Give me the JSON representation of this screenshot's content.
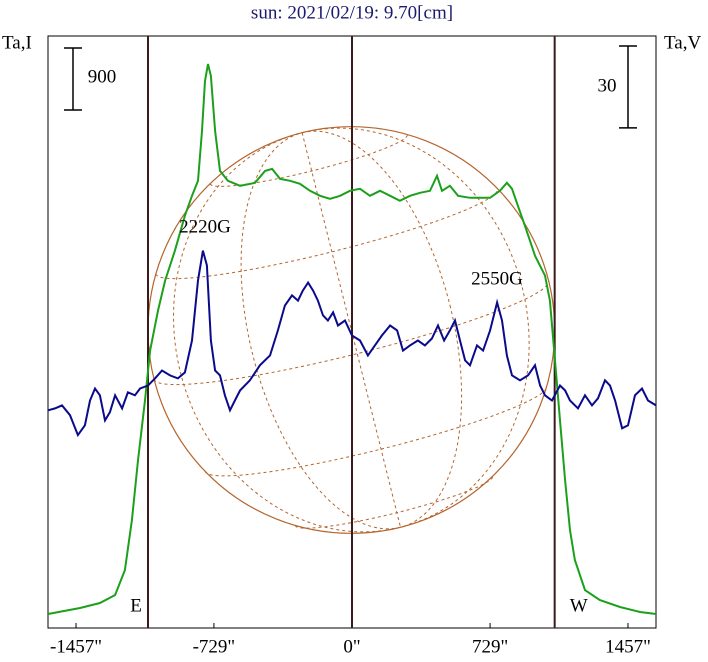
{
  "chart_data": {
    "type": "line",
    "title": "sun: 2021/02/19: 9.70[cm]",
    "ylabel": "Ta,I",
    "y2label": "Ta,V",
    "xlim": [
      -1605,
      1605
    ],
    "xticks": [
      {
        "value": -1457,
        "label": "-1457\""
      },
      {
        "value": -729,
        "label": "-729\""
      },
      {
        "value": 0,
        "label": "0\""
      },
      {
        "value": 729,
        "label": "729\""
      },
      {
        "value": 1457,
        "label": "1457\""
      }
    ],
    "ylim": [
      0,
      8600
    ],
    "y2lim": [
      0,
      217
    ],
    "y_scale": 900,
    "y2_scale": 30,
    "limbs": [
      -1077,
      1070
    ],
    "limb_labels": [
      "E",
      "W"
    ],
    "annotations": [
      "2220G",
      "2550G"
    ],
    "series": [
      {
        "name": "Ta,I",
        "color": "#1ca01c",
        "x": [
          -1605,
          -1436,
          -1331,
          -1251,
          -1199,
          -1162,
          -1130,
          -1093,
          -1066,
          -1024,
          -987,
          -935,
          -882,
          -845,
          -813,
          -792,
          -776,
          -760,
          -745,
          -723,
          -697,
          -655,
          -591,
          -512,
          -459,
          -422,
          -380,
          -327,
          -275,
          -222,
          -169,
          -116,
          -63,
          -11,
          42,
          95,
          148,
          201,
          253,
          306,
          359,
          412,
          449,
          475,
          517,
          560,
          623,
          729,
          781,
          818,
          845,
          876,
          913,
          966,
          1019,
          1045,
          1072,
          1098,
          1125,
          1151,
          1177,
          1230,
          1309,
          1415,
          1521,
          1605
        ],
        "values": [
          203,
          290,
          363,
          479,
          841,
          1566,
          2436,
          3306,
          4031,
          4611,
          5046,
          5481,
          5989,
          6279,
          6496,
          7221,
          7946,
          8193,
          8019,
          7221,
          6641,
          6496,
          6424,
          6467,
          6641,
          6670,
          6525,
          6496,
          6453,
          6351,
          6279,
          6235,
          6279,
          6351,
          6380,
          6279,
          6351,
          6279,
          6206,
          6279,
          6322,
          6351,
          6569,
          6351,
          6424,
          6279,
          6250,
          6250,
          6351,
          6467,
          6380,
          6134,
          5844,
          5409,
          5119,
          4756,
          3886,
          3016,
          2146,
          1421,
          986,
          551,
          406,
          305,
          232,
          203
        ]
      },
      {
        "name": "Ta,V",
        "color": "#0a0a8c",
        "axis": "y2",
        "x": [
          -1605,
          -1568,
          -1531,
          -1489,
          -1447,
          -1410,
          -1383,
          -1357,
          -1331,
          -1304,
          -1278,
          -1251,
          -1214,
          -1183,
          -1146,
          -1119,
          -1077,
          -1040,
          -1003,
          -961,
          -919,
          -882,
          -845,
          -813,
          -787,
          -766,
          -745,
          -723,
          -697,
          -671,
          -644,
          -618,
          -591,
          -539,
          -486,
          -433,
          -391,
          -354,
          -317,
          -285,
          -259,
          -232,
          -206,
          -180,
          -153,
          -127,
          -100,
          -74,
          -37,
          0,
          42,
          84,
          121,
          158,
          201,
          238,
          269,
          306,
          348,
          385,
          422,
          454,
          486,
          517,
          544,
          570,
          597,
          623,
          660,
          692,
          729,
          766,
          792,
          818,
          845,
          887,
          929,
          966,
          993,
          1019,
          1056,
          1098,
          1125,
          1151,
          1193,
          1230,
          1267,
          1299,
          1336,
          1362,
          1389,
          1426,
          1457,
          1494,
          1531,
          1563,
          1605
        ],
        "values": [
          79.8,
          80.5,
          81.6,
          78.0,
          70.7,
          74.3,
          83.4,
          87.8,
          85.3,
          76.1,
          79.1,
          85.3,
          80.5,
          86.4,
          85.3,
          87.8,
          88.9,
          91.5,
          94.4,
          92.6,
          91.5,
          93.7,
          105.4,
          127.4,
          138.3,
          132.9,
          105.4,
          94.4,
          92.6,
          85.3,
          79.8,
          83.4,
          87.1,
          90.8,
          96.3,
          99.9,
          109.1,
          118.2,
          121.9,
          120.0,
          123.7,
          126.6,
          123.7,
          120.0,
          114.6,
          112.7,
          115.7,
          110.9,
          112.7,
          107.2,
          105.4,
          99.9,
          103.6,
          107.2,
          110.9,
          109.1,
          101.7,
          103.6,
          105.4,
          103.6,
          106.1,
          110.9,
          105.4,
          109.1,
          112.7,
          105.4,
          98.1,
          96.3,
          103.6,
          101.7,
          109.1,
          119.3,
          112.7,
          99.9,
          92.6,
          90.8,
          92.6,
          96.3,
          88.9,
          85.3,
          83.4,
          88.9,
          87.1,
          83.4,
          80.5,
          85.3,
          81.6,
          84.2,
          90.8,
          88.9,
          83.4,
          73.2,
          74.3,
          85.3,
          87.8,
          83.4,
          81.6
        ]
      }
    ]
  }
}
